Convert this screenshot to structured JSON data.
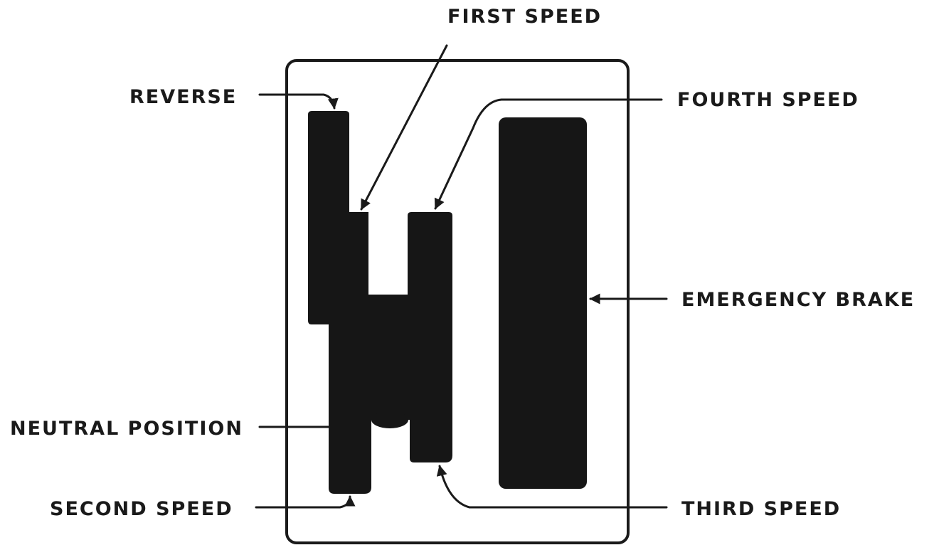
{
  "labels": {
    "first_speed": "FIRST SPEED",
    "reverse": "REVERSE",
    "fourth_speed": "FOURTH SPEED",
    "emergency_brake": "EMERGENCY BRAKE",
    "neutral_position": "NEUTRAL POSITION",
    "second_speed": "SECOND SPEED",
    "third_speed": "THIRD SPEED"
  },
  "colors": {
    "ink": "#161616",
    "background": "#ffffff"
  }
}
